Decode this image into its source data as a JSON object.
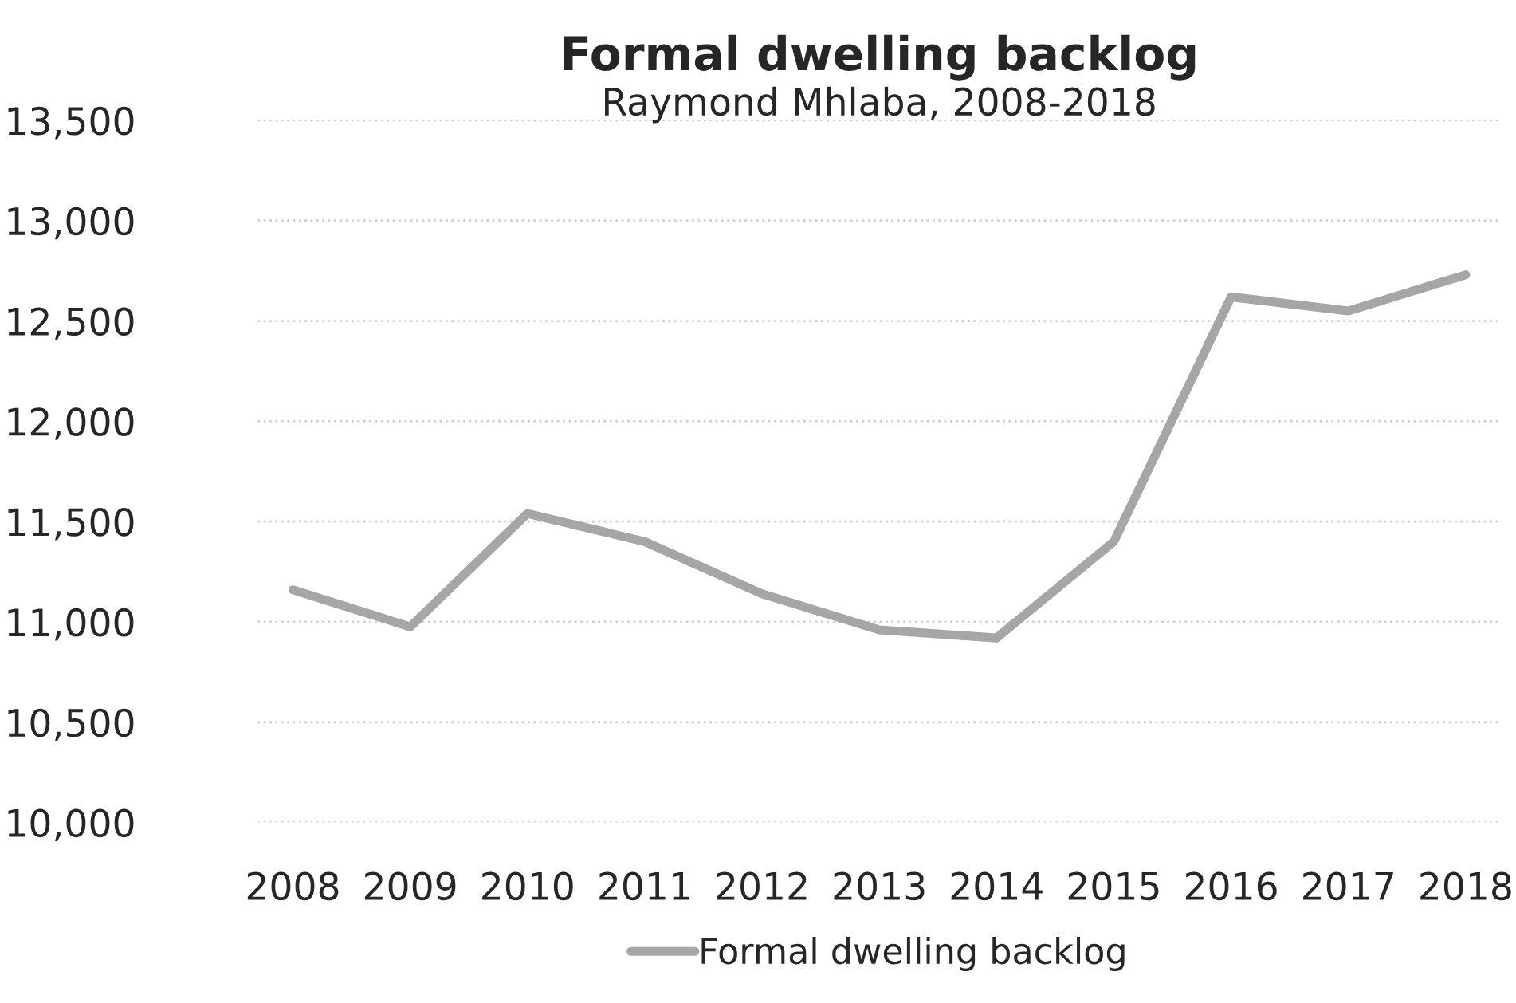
{
  "chart_data": {
    "type": "line",
    "title": "Formal dwelling backlog",
    "subtitle": "Raymond Mhlaba, 2008-2018",
    "categories": [
      "2008",
      "2009",
      "2010",
      "2011",
      "2012",
      "2013",
      "2014",
      "2015",
      "2016",
      "2017",
      "2018"
    ],
    "series": [
      {
        "name": "Formal dwelling backlog",
        "color": "#a6a6a6",
        "values": [
          11160,
          10975,
          11540,
          11400,
          11140,
          10960,
          10920,
          11400,
          12620,
          12550,
          12730
        ]
      }
    ],
    "ylim": [
      10000,
      13500
    ],
    "yticks": [
      {
        "value": 10000,
        "label": "10,000"
      },
      {
        "value": 10500,
        "label": "10,500"
      },
      {
        "value": 11000,
        "label": "11,000"
      },
      {
        "value": 11500,
        "label": "11,500"
      },
      {
        "value": 12000,
        "label": "12,000"
      },
      {
        "value": 12500,
        "label": "12,500"
      },
      {
        "value": 13000,
        "label": "13,000"
      },
      {
        "value": 13500,
        "label": "13,500"
      }
    ],
    "grid": "y",
    "legend": "bottom",
    "marker": "none",
    "line_style": "solid"
  }
}
